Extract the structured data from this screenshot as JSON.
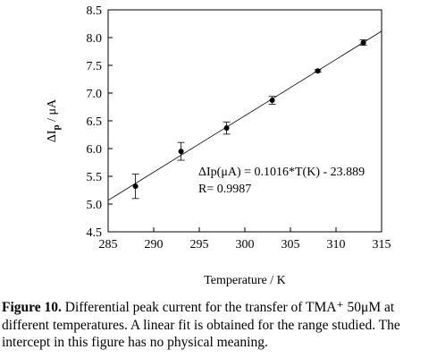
{
  "chart_data": {
    "type": "scatter",
    "title": "",
    "xlabel": "Temperature / K",
    "ylabel": "ΔIp / μA",
    "ylabel_main": "ΔI",
    "ylabel_sub": "p",
    "ylabel_unit": " / μA",
    "xlim": [
      285,
      315
    ],
    "ylim": [
      4.5,
      8.5
    ],
    "x_ticks": [
      "285",
      "290",
      "295",
      "300",
      "305",
      "310",
      "315"
    ],
    "y_ticks": [
      "4.5",
      "5.0",
      "5.5",
      "6.0",
      "6.5",
      "7.0",
      "7.5",
      "8.0",
      "8.5"
    ],
    "grid": false,
    "series": [
      {
        "points": [
          {
            "x": 288,
            "y": 5.32,
            "err": 0.22
          },
          {
            "x": 293,
            "y": 5.95,
            "err": 0.16
          },
          {
            "x": 298,
            "y": 6.37,
            "err": 0.11
          },
          {
            "x": 303,
            "y": 6.87,
            "err": 0.07
          },
          {
            "x": 308,
            "y": 7.4,
            "err": 0.02
          },
          {
            "x": 313,
            "y": 7.91,
            "err": 0.05
          }
        ]
      }
    ],
    "fit": {
      "slope": 0.1016,
      "intercept": -23.889,
      "x_range": [
        285,
        315
      ],
      "equation": "ΔIp(μA) = 0.1016*T(K) - 23.889",
      "r_text": "R= 0.9987"
    }
  },
  "caption": {
    "label": "Figure 10.",
    "text": " Differential peak current for the transfer of TMA⁺ 50μM at different temperatures. A linear fit is obtained for the range studied. The intercept in this figure has no physical meaning."
  }
}
